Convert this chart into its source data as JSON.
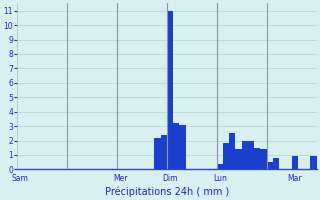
{
  "xlabel": "Précipitations 24h ( mm )",
  "background_color": "#d8f0f0",
  "bar_color": "#1a3fcc",
  "grid_color": "#b8cece",
  "axis_label_color": "#2222cc",
  "tick_label_color": "#2222cc",
  "vline_color": "#8899aa",
  "ylim": [
    0,
    11.5
  ],
  "yticks": [
    0,
    1,
    2,
    3,
    4,
    5,
    6,
    7,
    8,
    9,
    10,
    11
  ],
  "day_labels": [
    "Sam",
    "Mer",
    "Dim",
    "Lun",
    "Mar"
  ],
  "num_bars": 48,
  "bars_per_day": 8,
  "bar_values": [
    0,
    0,
    0,
    0,
    0,
    0,
    0,
    0,
    0,
    0,
    0,
    0,
    0,
    0,
    0,
    0,
    0,
    0,
    0,
    0,
    0,
    0,
    2.2,
    2.4,
    11.0,
    3.2,
    3.1,
    0,
    0,
    0,
    0,
    0,
    0.4,
    1.8,
    2.5,
    1.4,
    2.0,
    2.0,
    1.5,
    1.4,
    0.5,
    0.8,
    0,
    0,
    0.9,
    0,
    0,
    0.9
  ],
  "figsize": [
    3.2,
    2.0
  ],
  "dpi": 100
}
